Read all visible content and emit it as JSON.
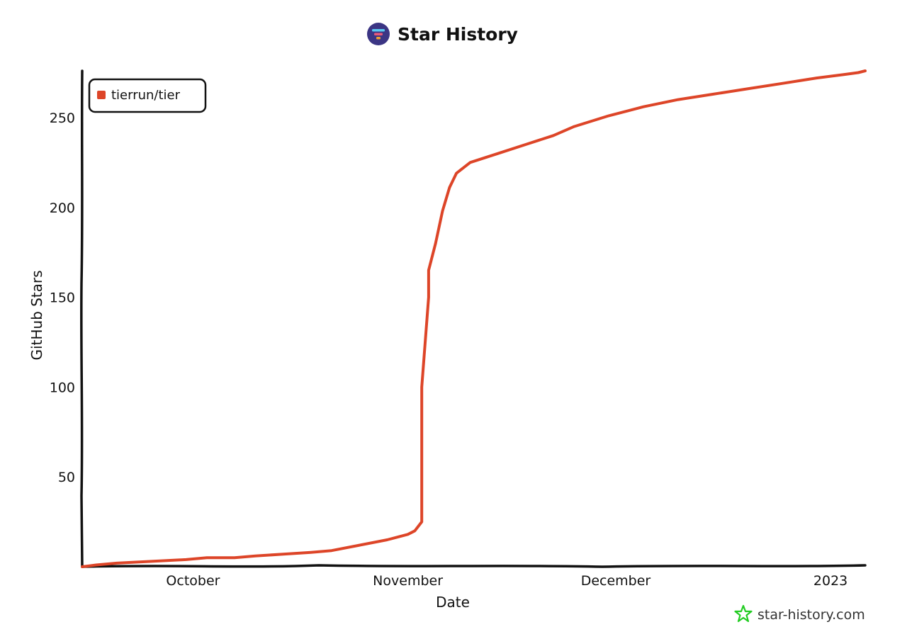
{
  "page": {
    "watermark_text": "star-history.com",
    "logo_icon": "star-history-logo-icon",
    "watermark_icon": "star-outline-icon"
  },
  "colors": {
    "series": "#dd4528",
    "axis": "#111111",
    "logo_bg": "#3b3584",
    "logo_bar_top": "#5ac8f0",
    "logo_bar_mid": "#e85a7a",
    "logo_bar_bottom": "#f0a030",
    "watermark_star": "#22cc22"
  },
  "chart_data": {
    "type": "line",
    "title": "Star History",
    "xlabel": "Date",
    "ylabel": "GitHub Stars",
    "x_type": "date",
    "xlim": [
      "2022-09-15",
      "2023-01-06"
    ],
    "ylim": [
      0,
      276
    ],
    "yticks": [
      50,
      100,
      150,
      200,
      250
    ],
    "xticks": [
      {
        "date": "2022-10-01",
        "label": "October"
      },
      {
        "date": "2022-11-01",
        "label": "November"
      },
      {
        "date": "2022-12-01",
        "label": "December"
      },
      {
        "date": "2023-01-01",
        "label": "2023"
      }
    ],
    "grid": false,
    "legend_position": "top-left",
    "series": [
      {
        "name": "tierrun/tier",
        "color": "#dd4528",
        "points": [
          [
            "2022-09-15",
            0
          ],
          [
            "2022-09-17",
            1
          ],
          [
            "2022-09-20",
            2
          ],
          [
            "2022-09-25",
            3
          ],
          [
            "2022-09-30",
            4
          ],
          [
            "2022-10-03",
            5
          ],
          [
            "2022-10-07",
            5
          ],
          [
            "2022-10-10",
            6
          ],
          [
            "2022-10-14",
            7
          ],
          [
            "2022-10-18",
            8
          ],
          [
            "2022-10-21",
            9
          ],
          [
            "2022-10-25",
            12
          ],
          [
            "2022-10-29",
            15
          ],
          [
            "2022-11-01",
            18
          ],
          [
            "2022-11-02",
            20
          ],
          [
            "2022-11-03",
            25
          ],
          [
            "2022-11-03",
            35
          ],
          [
            "2022-11-03",
            70
          ],
          [
            "2022-11-03",
            100
          ],
          [
            "2022-11-04",
            150
          ],
          [
            "2022-11-04",
            165
          ],
          [
            "2022-11-05",
            180
          ],
          [
            "2022-11-06",
            198
          ],
          [
            "2022-11-07",
            211
          ],
          [
            "2022-11-08",
            219
          ],
          [
            "2022-11-10",
            225
          ],
          [
            "2022-11-14",
            230
          ],
          [
            "2022-11-18",
            235
          ],
          [
            "2022-11-22",
            240
          ],
          [
            "2022-11-25",
            245
          ],
          [
            "2022-11-30",
            251
          ],
          [
            "2022-12-05",
            256
          ],
          [
            "2022-12-10",
            260
          ],
          [
            "2022-12-15",
            263
          ],
          [
            "2022-12-20",
            266
          ],
          [
            "2022-12-25",
            269
          ],
          [
            "2022-12-30",
            272
          ],
          [
            "2023-01-03",
            274
          ],
          [
            "2023-01-05",
            275
          ],
          [
            "2023-01-06",
            276
          ]
        ]
      }
    ]
  }
}
